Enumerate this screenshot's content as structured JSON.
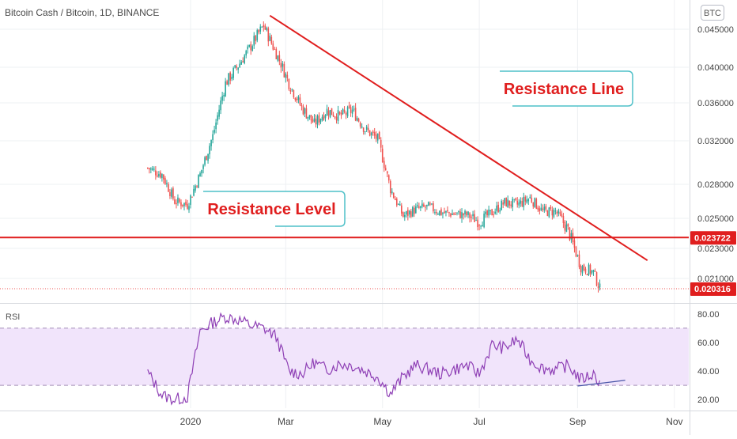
{
  "header": {
    "title": "Bitcoin Cash / Bitcoin, 1D, BINANCE",
    "currency_badge": "BTC"
  },
  "colors": {
    "up": "#26a69a",
    "down": "#ef5350",
    "annotation": "#e01e1e",
    "rsi_line": "#8e3fb5",
    "rsi_band": "#f1e4fb",
    "callout_border": "#4fc0c8"
  },
  "annotations": {
    "resistance_line": "Resistance Line",
    "resistance_level": "Resistance Level"
  },
  "rsi": {
    "label": "RSI"
  },
  "chart_data": [
    {
      "type": "candlestick",
      "title": "Bitcoin Cash / Bitcoin, 1D, BINANCE",
      "x_tick_labels": [
        "2020",
        "Mar",
        "May",
        "Jul",
        "Sep",
        "Nov"
      ],
      "x_tick_dates": [
        "2020-01-01",
        "2020-03-01",
        "2020-05-01",
        "2020-07-01",
        "2020-09-01",
        "2020-11-01"
      ],
      "xlim": [
        "2019-11-17",
        "2020-11-12"
      ],
      "y_ticks": [
        0.021,
        0.023,
        0.025,
        0.028,
        0.032,
        0.036,
        0.04,
        0.045
      ],
      "y_tick_labels": [
        "0.021000",
        "0.023000",
        "0.025000",
        "0.028000",
        "0.032000",
        "0.036000",
        "0.040000",
        "0.045000"
      ],
      "ylim": [
        0.0195,
        0.0473
      ],
      "grid": true,
      "candle_dates": [
        "2019-12-05",
        "2019-12-14",
        "2019-12-22",
        "2019-12-30",
        "2020-01-07",
        "2020-01-15",
        "2020-01-23",
        "2020-01-31",
        "2020-02-08",
        "2020-02-16",
        "2020-02-24",
        "2020-03-03",
        "2020-03-11",
        "2020-03-19",
        "2020-03-27",
        "2020-04-04",
        "2020-04-12",
        "2020-04-20",
        "2020-04-28",
        "2020-05-06",
        "2020-05-14",
        "2020-05-22",
        "2020-05-30",
        "2020-06-07",
        "2020-06-15",
        "2020-06-23",
        "2020-07-01",
        "2020-07-09",
        "2020-07-17",
        "2020-07-25",
        "2020-08-02",
        "2020-08-10",
        "2020-08-18",
        "2020-08-26",
        "2020-09-03",
        "2020-09-11",
        "2020-09-15"
      ],
      "close": [
        0.0295,
        0.0289,
        0.0265,
        0.0262,
        0.0289,
        0.0325,
        0.0382,
        0.0402,
        0.0428,
        0.0455,
        0.0418,
        0.0382,
        0.0355,
        0.0338,
        0.0352,
        0.0346,
        0.0352,
        0.0332,
        0.0322,
        0.0276,
        0.0252,
        0.0258,
        0.026,
        0.0255,
        0.0254,
        0.0253,
        0.0248,
        0.0255,
        0.0264,
        0.0262,
        0.0268,
        0.0256,
        0.0256,
        0.0242,
        0.0218,
        0.0214,
        0.0203
      ],
      "reference_line": {
        "label": "Resistance Level",
        "value": 0.023722
      },
      "trendline": {
        "label": "Resistance Line",
        "points": [
          [
            "2020-02-20",
            0.0468
          ],
          [
            "2020-10-15",
            0.0222
          ]
        ]
      },
      "price_labels": [
        {
          "text": "0.023722",
          "value": 0.023722
        },
        {
          "text": "0.020316",
          "value": 0.020316
        }
      ]
    },
    {
      "type": "line",
      "title": "RSI",
      "x": [
        "2019-12-05",
        "2019-12-14",
        "2019-12-22",
        "2019-12-30",
        "2020-01-07",
        "2020-01-15",
        "2020-01-23",
        "2020-01-31",
        "2020-02-08",
        "2020-02-16",
        "2020-02-24",
        "2020-03-03",
        "2020-03-11",
        "2020-03-19",
        "2020-03-27",
        "2020-04-04",
        "2020-04-12",
        "2020-04-20",
        "2020-04-28",
        "2020-05-06",
        "2020-05-14",
        "2020-05-22",
        "2020-05-30",
        "2020-06-07",
        "2020-06-15",
        "2020-06-23",
        "2020-07-01",
        "2020-07-09",
        "2020-07-17",
        "2020-07-25",
        "2020-08-02",
        "2020-08-10",
        "2020-08-18",
        "2020-08-26",
        "2020-09-03",
        "2020-09-11",
        "2020-09-15"
      ],
      "values": [
        39,
        23,
        20,
        22,
        68,
        74,
        78,
        76,
        72,
        70,
        64,
        40,
        38,
        46,
        41,
        45,
        44,
        40,
        36,
        24,
        36,
        44,
        41,
        38,
        41,
        44,
        38,
        58,
        56,
        62,
        48,
        42,
        41,
        44,
        34,
        38,
        32
      ],
      "y_ticks": [
        20,
        40,
        60,
        80
      ],
      "y_tick_labels": [
        "20.00",
        "40.00",
        "60.00",
        "80.00"
      ],
      "ylim": [
        14,
        86
      ],
      "bands": [
        30,
        70
      ],
      "divergence_line": {
        "points": [
          [
            "2020-09-01",
            29.5
          ],
          [
            "2020-10-01",
            33.5
          ]
        ]
      }
    }
  ]
}
